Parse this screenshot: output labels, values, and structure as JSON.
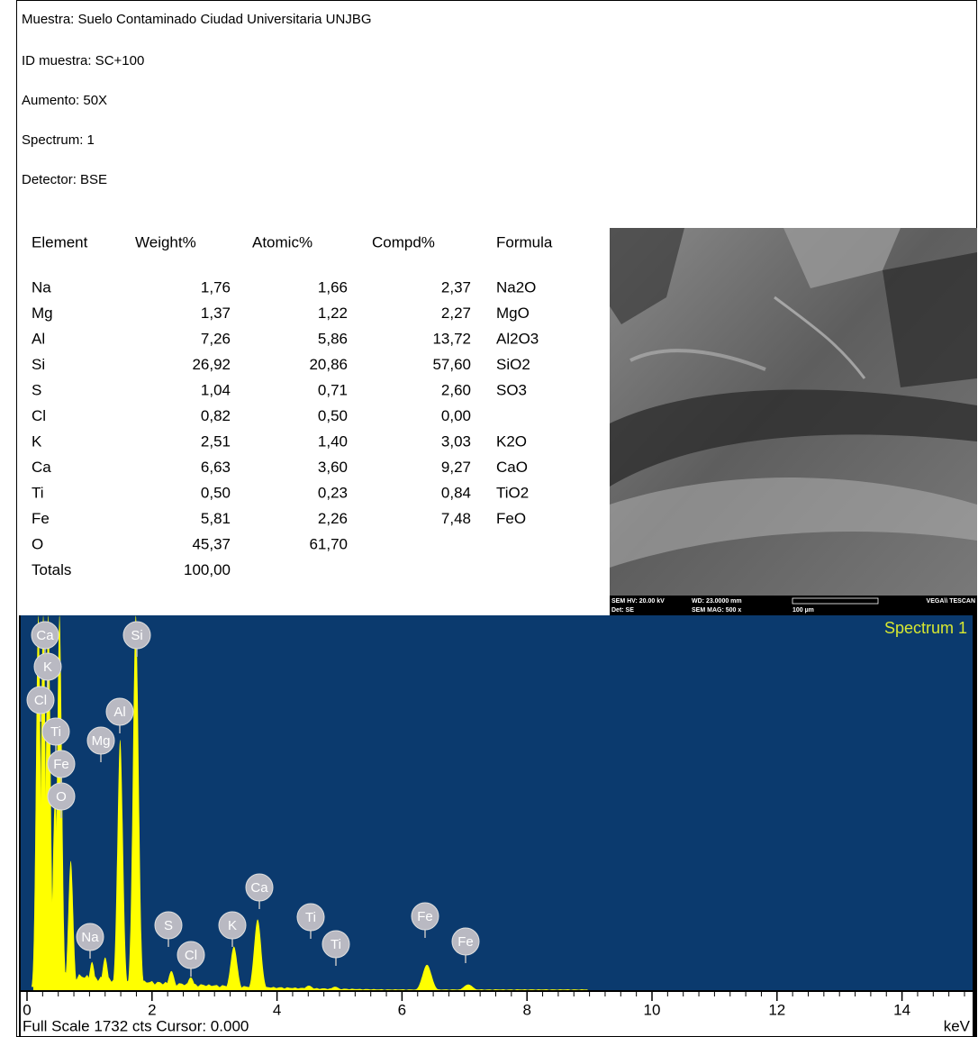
{
  "header": {
    "lines": [
      "Muestra:  Suelo Contaminado Ciudad Universitaria UNJBG",
      "ID muestra: SC+100",
      "Aumento: 50X",
      "Spectrum: 1",
      "Detector: BSE"
    ]
  },
  "table": {
    "columns": [
      "Element",
      "Weight%",
      "Atomic%",
      "Compd%",
      "Formula"
    ],
    "rows": [
      [
        "Na",
        "1,76",
        "1,66",
        "2,37",
        "Na2O"
      ],
      [
        "Mg",
        "1,37",
        "1,22",
        "2,27",
        "MgO"
      ],
      [
        "Al",
        "7,26",
        "5,86",
        "13,72",
        "Al2O3"
      ],
      [
        "Si",
        "26,92",
        "20,86",
        "57,60",
        "SiO2"
      ],
      [
        "S",
        "1,04",
        "0,71",
        "2,60",
        "SO3"
      ],
      [
        "Cl",
        "0,82",
        "0,50",
        "0,00",
        null
      ],
      [
        "K",
        "2,51",
        "1,40",
        "3,03",
        "K2O"
      ],
      [
        "Ca",
        "6,63",
        "3,60",
        "9,27",
        "CaO"
      ],
      [
        "Ti",
        "0,50",
        "0,23",
        "0,84",
        "TiO2"
      ],
      [
        "Fe",
        "5,81",
        "2,26",
        "7,48",
        "FeO"
      ],
      [
        "O",
        "45,37",
        "61,70",
        null,
        null
      ],
      [
        "Totals",
        "100,00",
        null,
        null,
        null
      ]
    ]
  },
  "sem_image": {
    "info": [
      "SEM HV: 20.00 kV",
      "WD: 23.0000 mm",
      "VEGA\\\\ TESCAN",
      "Det: SE",
      "SEM MAG: 500 x",
      "100 µm"
    ]
  },
  "spectrum": {
    "type": "line",
    "title": "Spectrum 1",
    "footer": "Full Scale 1732 cts Cursor: 0.000",
    "x_unit": "keV",
    "xlim": [
      0,
      15
    ],
    "ylim": [
      0,
      1732
    ],
    "xticks": [
      0,
      2,
      4,
      6,
      8,
      10,
      12,
      14
    ],
    "color": "#ffff00",
    "background": "#0b3a6e",
    "peaks": [
      {
        "label": "Cl",
        "x": 0.18,
        "y": 1732
      },
      {
        "label": "K",
        "x": 0.26,
        "y": 1732
      },
      {
        "label": "Ca",
        "x": 0.34,
        "y": 1732
      },
      {
        "label": "Ti",
        "x": 0.45,
        "y": 900
      },
      {
        "label": "O",
        "x": 0.52,
        "y": 1732
      },
      {
        "label": "Fe",
        "x": 0.7,
        "y": 600
      },
      {
        "label": "Na",
        "x": 1.04,
        "y": 134
      },
      {
        "label": "Mg",
        "x": 1.25,
        "y": 155
      },
      {
        "label": "Al",
        "x": 1.49,
        "y": 1159
      },
      {
        "label": "Si",
        "x": 1.74,
        "y": 1732
      },
      {
        "label": "S",
        "x": 2.31,
        "y": 92
      },
      {
        "label": "Cl",
        "x": 2.62,
        "y": 63
      },
      {
        "label": "K",
        "x": 3.31,
        "y": 205
      },
      {
        "label": "Ca",
        "x": 3.69,
        "y": 330
      },
      {
        "label": "Ti",
        "x": 4.51,
        "y": 25
      },
      {
        "label": "Ti",
        "x": 4.93,
        "y": 20
      },
      {
        "label": "Fe",
        "x": 6.4,
        "y": 121
      },
      {
        "label": "Fe",
        "x": 7.06,
        "y": 30
      }
    ]
  }
}
